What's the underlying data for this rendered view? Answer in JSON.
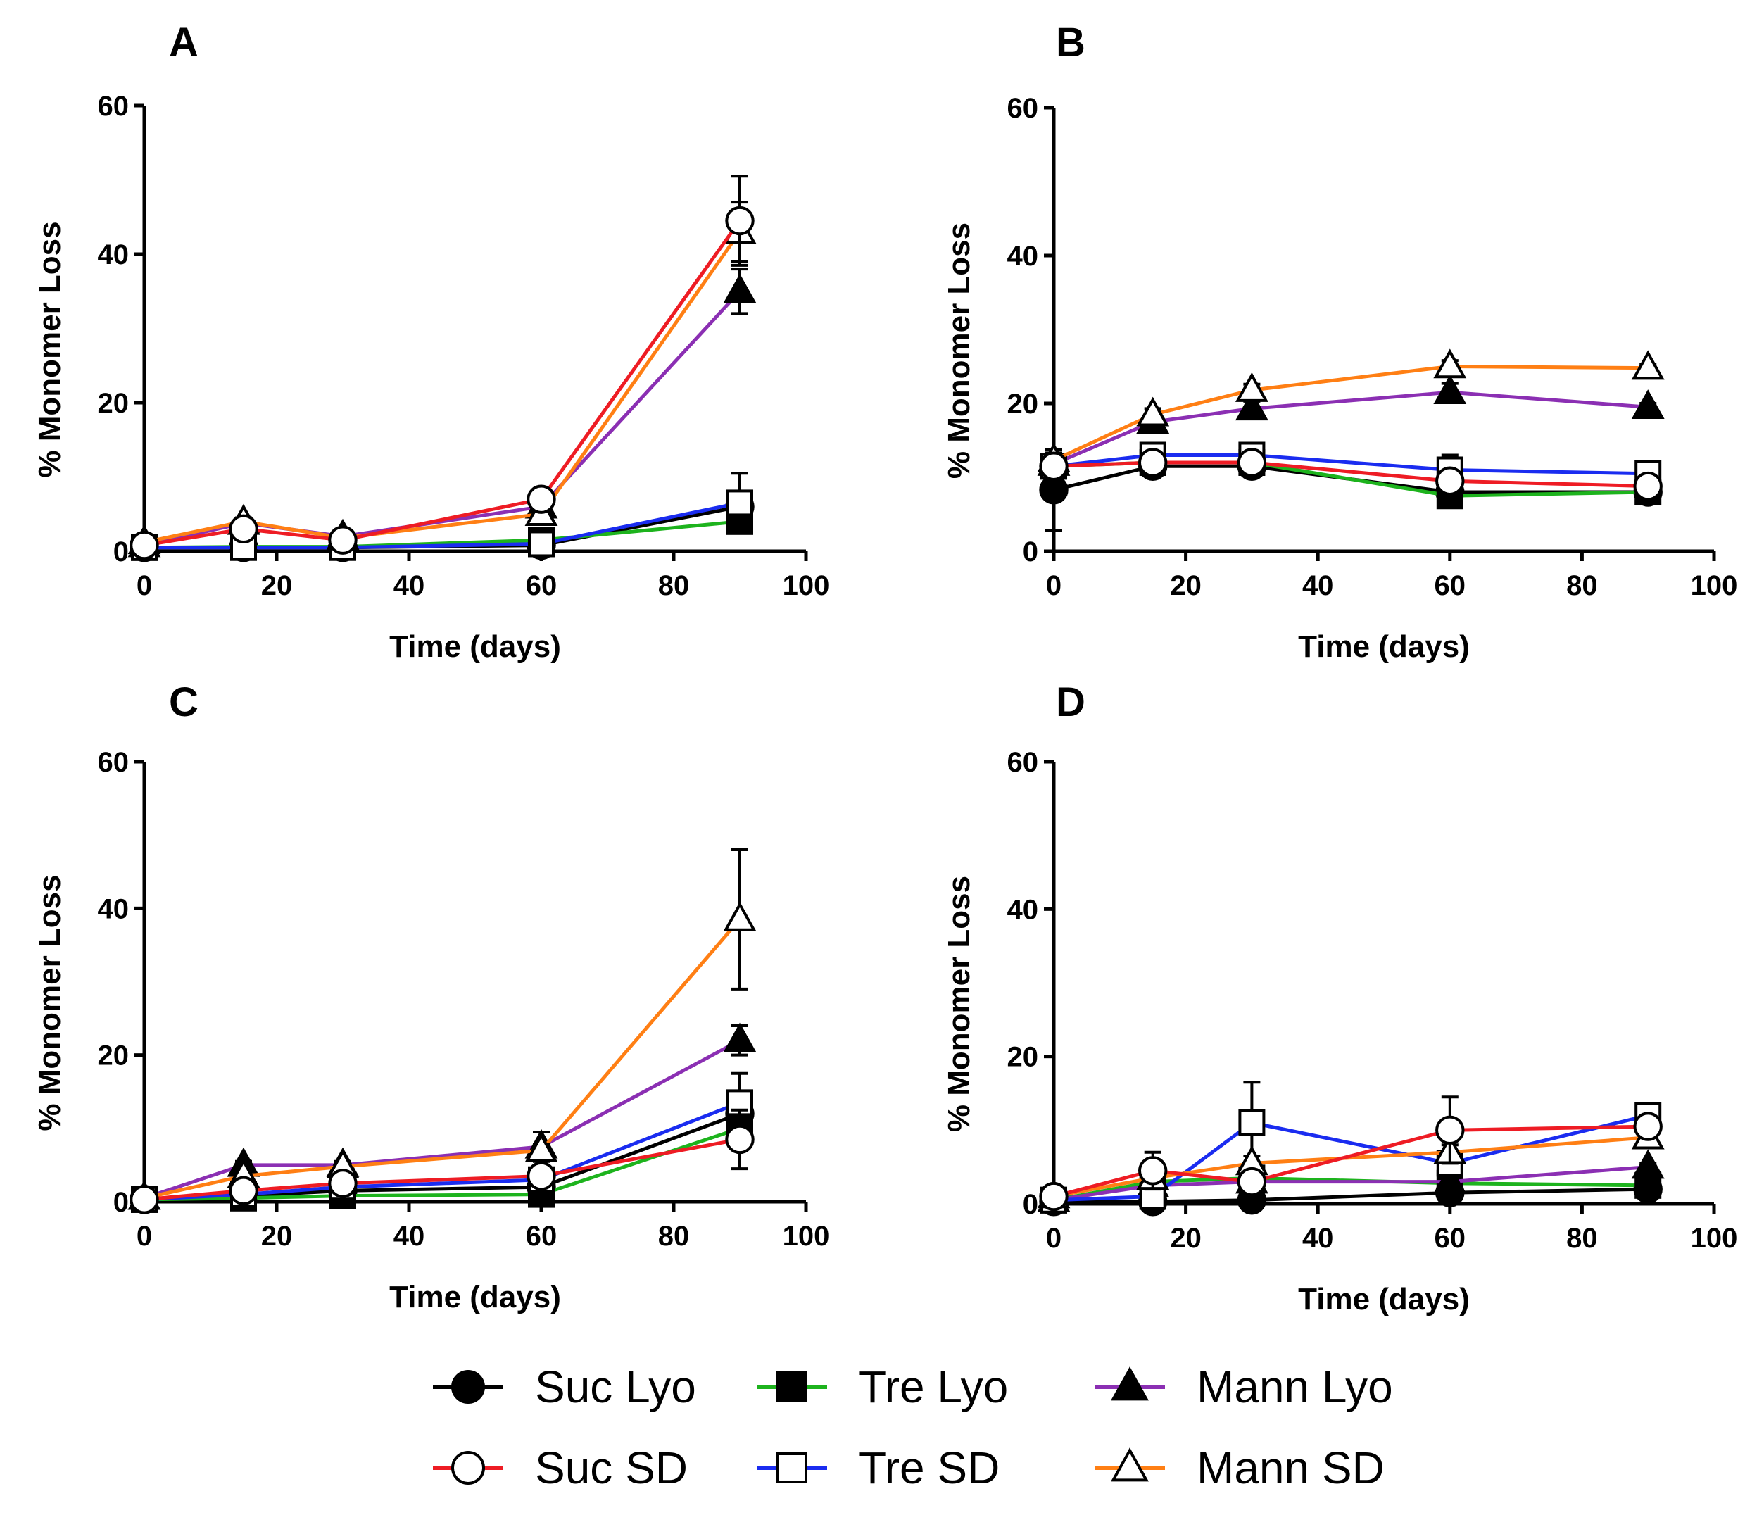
{
  "figure": {
    "description_free": true
  },
  "legend": [
    {
      "key": "suc_lyo",
      "label": "Suc Lyo",
      "color": "#000000",
      "marker": "circle",
      "filled": true
    },
    {
      "key": "tre_lyo",
      "label": "Tre Lyo",
      "color": "#1db31d",
      "marker": "square",
      "filled": true
    },
    {
      "key": "mann_lyo",
      "label": "Mann Lyo",
      "color": "#8b2fb3",
      "marker": "triangle",
      "filled": true
    },
    {
      "key": "suc_sd",
      "label": "Suc SD",
      "color": "#ee1c24",
      "marker": "circle",
      "filled": false
    },
    {
      "key": "tre_sd",
      "label": "Tre SD",
      "color": "#1a2cf0",
      "marker": "square",
      "filled": false
    },
    {
      "key": "mann_sd",
      "label": "Mann SD",
      "color": "#ff7f14",
      "marker": "triangle",
      "filled": false
    }
  ],
  "chart_data": [
    {
      "panel": "A",
      "type": "line",
      "xlabel": "Time (days)",
      "ylabel": "% Monomer Loss",
      "xlim": [
        0,
        100
      ],
      "ylim": [
        0,
        60
      ],
      "xticks": [
        0,
        20,
        40,
        60,
        80,
        100
      ],
      "yticks": [
        0,
        20,
        40,
        60
      ],
      "x": [
        0,
        15,
        30,
        60,
        90
      ],
      "series": [
        {
          "key": "suc_lyo",
          "name": "Suc Lyo",
          "values": [
            0.5,
            0.5,
            0.5,
            0.8,
            6.0
          ],
          "errors": [
            0.3,
            0.3,
            0.3,
            0.3,
            1.5
          ]
        },
        {
          "key": "tre_lyo",
          "name": "Tre Lyo",
          "values": [
            0.5,
            0.6,
            0.6,
            1.5,
            4.0
          ],
          "errors": [
            0.3,
            0.3,
            0.3,
            0.3,
            1.0
          ]
        },
        {
          "key": "mann_lyo",
          "name": "Mann Lyo",
          "values": [
            0.8,
            3.8,
            2.0,
            6.0,
            35.0
          ],
          "errors": [
            0.3,
            0.5,
            0.5,
            0.5,
            3.0
          ]
        },
        {
          "key": "suc_sd",
          "name": "Suc SD",
          "values": [
            0.8,
            3.0,
            1.5,
            7.0,
            44.5
          ],
          "errors": [
            0.3,
            0.5,
            0.3,
            0.5,
            6.0
          ]
        },
        {
          "key": "tre_sd",
          "name": "Tre SD",
          "values": [
            0.5,
            0.5,
            0.5,
            1.0,
            6.5
          ],
          "errors": [
            0.3,
            0.3,
            0.3,
            0.3,
            4.0
          ]
        },
        {
          "key": "mann_sd",
          "name": "Mann SD",
          "values": [
            1.2,
            4.0,
            1.8,
            5.0,
            43.0
          ],
          "errors": [
            0.3,
            0.5,
            0.3,
            0.5,
            4.0
          ]
        }
      ]
    },
    {
      "panel": "B",
      "type": "line",
      "xlabel": "Time (days)",
      "ylabel": "% Monomer Loss",
      "xlim": [
        0,
        100
      ],
      "ylim": [
        0,
        60
      ],
      "xticks": [
        0,
        20,
        40,
        60,
        80,
        100
      ],
      "yticks": [
        0,
        20,
        40,
        60
      ],
      "x": [
        0,
        15,
        30,
        60,
        90
      ],
      "series": [
        {
          "key": "suc_lyo",
          "name": "Suc Lyo",
          "values": [
            8.3,
            11.5,
            11.5,
            8.0,
            8.0
          ],
          "errors": [
            5.5,
            0.8,
            0.8,
            0.8,
            0.5
          ]
        },
        {
          "key": "tre_lyo",
          "name": "Tre Lyo",
          "values": [
            11.5,
            12.0,
            12.0,
            7.5,
            8.0
          ],
          "errors": [
            1.0,
            0.8,
            0.8,
            0.8,
            0.5
          ]
        },
        {
          "key": "mann_lyo",
          "name": "Mann Lyo",
          "values": [
            11.8,
            17.5,
            19.3,
            21.5,
            19.5
          ],
          "errors": [
            1.0,
            1.0,
            1.0,
            1.2,
            0.5
          ]
        },
        {
          "key": "suc_sd",
          "name": "Suc SD",
          "values": [
            11.5,
            12.0,
            12.0,
            9.5,
            8.8
          ],
          "errors": [
            1.0,
            0.8,
            0.8,
            0.8,
            0.5
          ]
        },
        {
          "key": "tre_sd",
          "name": "Tre SD",
          "values": [
            11.5,
            13.0,
            13.0,
            11.0,
            10.5
          ],
          "errors": [
            1.0,
            0.8,
            0.8,
            2.0,
            0.5
          ]
        },
        {
          "key": "mann_sd",
          "name": "Mann SD",
          "values": [
            12.3,
            18.5,
            21.8,
            25.0,
            24.8
          ],
          "errors": [
            1.0,
            0.8,
            0.8,
            0.8,
            0.5
          ]
        }
      ]
    },
    {
      "panel": "C",
      "type": "line",
      "xlabel": "Time (days)",
      "ylabel": "% Monomer Loss",
      "xlim": [
        0,
        100
      ],
      "ylim": [
        0,
        60
      ],
      "xticks": [
        0,
        20,
        40,
        60,
        80,
        100
      ],
      "yticks": [
        0,
        20,
        40,
        60
      ],
      "x": [
        0,
        15,
        30,
        60,
        90
      ],
      "series": [
        {
          "key": "suc_lyo",
          "name": "Suc Lyo",
          "values": [
            0.3,
            0.8,
            1.5,
            2.0,
            12.0
          ],
          "errors": [
            0.3,
            0.3,
            0.3,
            0.5,
            2.0
          ]
        },
        {
          "key": "tre_lyo",
          "name": "Tre Lyo",
          "values": [
            0.3,
            0.5,
            0.8,
            1.0,
            10.0
          ],
          "errors": [
            0.3,
            0.3,
            0.3,
            0.3,
            2.0
          ]
        },
        {
          "key": "mann_lyo",
          "name": "Mann Lyo",
          "values": [
            0.5,
            5.0,
            5.0,
            7.5,
            22.0
          ],
          "errors": [
            0.3,
            0.5,
            0.5,
            2.0,
            2.0
          ]
        },
        {
          "key": "suc_sd",
          "name": "Suc SD",
          "values": [
            0.3,
            1.5,
            2.5,
            3.5,
            8.5
          ],
          "errors": [
            0.3,
            0.3,
            0.5,
            0.5,
            4.0
          ]
        },
        {
          "key": "tre_sd",
          "name": "Tre SD",
          "values": [
            0.3,
            1.0,
            2.0,
            3.0,
            13.5
          ],
          "errors": [
            0.3,
            0.3,
            0.5,
            0.5,
            4.0
          ]
        },
        {
          "key": "mann_sd",
          "name": "Mann SD",
          "values": [
            0.5,
            3.5,
            4.8,
            7.0,
            38.5
          ],
          "errors": [
            0.3,
            0.5,
            0.5,
            0.8,
            9.5
          ]
        }
      ]
    },
    {
      "panel": "D",
      "type": "line",
      "xlabel": "Time (days)",
      "ylabel": "% Monomer Loss",
      "xlim": [
        0,
        100
      ],
      "ylim": [
        0,
        60
      ],
      "xticks": [
        0,
        20,
        40,
        60,
        80,
        100
      ],
      "yticks": [
        0,
        20,
        40,
        60
      ],
      "x": [
        0,
        15,
        30,
        60,
        90
      ],
      "series": [
        {
          "key": "suc_lyo",
          "name": "Suc Lyo",
          "values": [
            0.3,
            0.3,
            0.5,
            1.5,
            2.0
          ],
          "errors": [
            0.3,
            0.3,
            0.3,
            0.3,
            0.3
          ]
        },
        {
          "key": "tre_lyo",
          "name": "Tre Lyo",
          "values": [
            0.5,
            3.0,
            3.5,
            2.8,
            2.5
          ],
          "errors": [
            0.3,
            0.5,
            0.5,
            0.5,
            0.5
          ]
        },
        {
          "key": "mann_lyo",
          "name": "Mann Lyo",
          "values": [
            0.5,
            2.5,
            3.0,
            3.0,
            5.0
          ],
          "errors": [
            0.3,
            0.5,
            0.5,
            0.5,
            0.5
          ]
        },
        {
          "key": "suc_sd",
          "name": "Suc SD",
          "values": [
            1.0,
            4.5,
            3.0,
            10.0,
            10.5
          ],
          "errors": [
            0.3,
            2.5,
            1.0,
            4.5,
            1.0
          ]
        },
        {
          "key": "tre_sd",
          "name": "Tre SD",
          "values": [
            0.5,
            1.0,
            11.0,
            5.5,
            12.0
          ],
          "errors": [
            0.3,
            0.5,
            5.5,
            1.0,
            1.0
          ]
        },
        {
          "key": "mann_sd",
          "name": "Mann SD",
          "values": [
            1.0,
            3.5,
            5.5,
            7.0,
            9.0
          ],
          "errors": [
            0.3,
            0.5,
            1.0,
            1.0,
            1.0
          ]
        }
      ]
    }
  ]
}
